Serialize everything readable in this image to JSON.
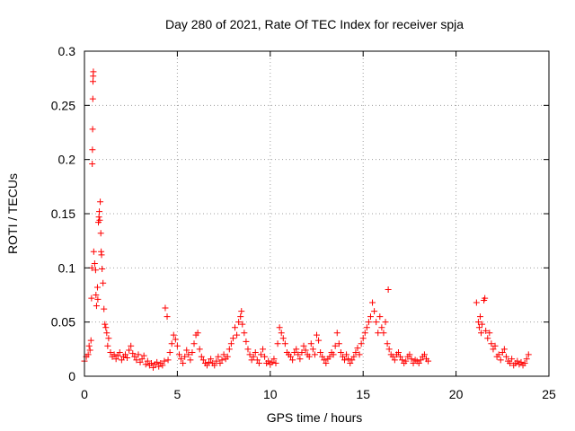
{
  "chart_data": {
    "type": "scatter",
    "title": "Day 280 of 2021, Rate Of TEC Index for receiver spja",
    "xlabel": "GPS time / hours",
    "ylabel": "ROTI / TECUs",
    "xlim": [
      0,
      25
    ],
    "ylim": [
      0,
      0.3
    ],
    "x_ticks": [
      0,
      5,
      10,
      15,
      20,
      25
    ],
    "y_ticks": [
      0,
      0.05,
      0.1,
      0.15,
      0.2,
      0.25,
      0.3
    ],
    "x_tick_labels": [
      "0",
      "5",
      "10",
      "15",
      "20",
      "25"
    ],
    "y_tick_labels": [
      "0",
      "0.05",
      "0.1",
      "0.15",
      "0.2",
      "0.25",
      "0.3"
    ],
    "grid": true,
    "marker": "plus",
    "color": "#ff0000",
    "points": [
      [
        0.0,
        0.014
      ],
      [
        0.1,
        0.018
      ],
      [
        0.2,
        0.02
      ],
      [
        0.25,
        0.028
      ],
      [
        0.3,
        0.024
      ],
      [
        0.35,
        0.033
      ],
      [
        0.38,
        0.072
      ],
      [
        0.4,
        0.1
      ],
      [
        0.42,
        0.196
      ],
      [
        0.43,
        0.209
      ],
      [
        0.44,
        0.228
      ],
      [
        0.45,
        0.256
      ],
      [
        0.46,
        0.272
      ],
      [
        0.47,
        0.277
      ],
      [
        0.48,
        0.281
      ],
      [
        0.5,
        0.115
      ],
      [
        0.55,
        0.104
      ],
      [
        0.6,
        0.098
      ],
      [
        0.62,
        0.075
      ],
      [
        0.65,
        0.065
      ],
      [
        0.7,
        0.082
      ],
      [
        0.72,
        0.071
      ],
      [
        0.75,
        0.142
      ],
      [
        0.78,
        0.147
      ],
      [
        0.8,
        0.152
      ],
      [
        0.82,
        0.144
      ],
      [
        0.85,
        0.161
      ],
      [
        0.88,
        0.132
      ],
      [
        0.9,
        0.115
      ],
      [
        0.92,
        0.112
      ],
      [
        0.95,
        0.099
      ],
      [
        1.0,
        0.086
      ],
      [
        1.05,
        0.062
      ],
      [
        1.1,
        0.048
      ],
      [
        1.15,
        0.045
      ],
      [
        1.2,
        0.04
      ],
      [
        1.25,
        0.028
      ],
      [
        1.3,
        0.035
      ],
      [
        1.4,
        0.022
      ],
      [
        1.5,
        0.018
      ],
      [
        1.6,
        0.02
      ],
      [
        1.7,
        0.016
      ],
      [
        1.8,
        0.019
      ],
      [
        1.9,
        0.022
      ],
      [
        2.0,
        0.015
      ],
      [
        2.1,
        0.018
      ],
      [
        2.2,
        0.02
      ],
      [
        2.3,
        0.017
      ],
      [
        2.4,
        0.024
      ],
      [
        2.5,
        0.028
      ],
      [
        2.6,
        0.021
      ],
      [
        2.7,
        0.018
      ],
      [
        2.8,
        0.015
      ],
      [
        2.9,
        0.02
      ],
      [
        3.0,
        0.013
      ],
      [
        3.1,
        0.016
      ],
      [
        3.2,
        0.019
      ],
      [
        3.3,
        0.011
      ],
      [
        3.4,
        0.014
      ],
      [
        3.5,
        0.01
      ],
      [
        3.6,
        0.012
      ],
      [
        3.7,
        0.008
      ],
      [
        3.8,
        0.011
      ],
      [
        3.9,
        0.013
      ],
      [
        4.0,
        0.009
      ],
      [
        4.1,
        0.012
      ],
      [
        4.2,
        0.01
      ],
      [
        4.3,
        0.014
      ],
      [
        4.35,
        0.063
      ],
      [
        4.45,
        0.055
      ],
      [
        4.5,
        0.015
      ],
      [
        4.6,
        0.022
      ],
      [
        4.7,
        0.03
      ],
      [
        4.8,
        0.038
      ],
      [
        4.9,
        0.034
      ],
      [
        5.0,
        0.028
      ],
      [
        5.1,
        0.02
      ],
      [
        5.2,
        0.016
      ],
      [
        5.3,
        0.012
      ],
      [
        5.4,
        0.018
      ],
      [
        5.5,
        0.024
      ],
      [
        5.6,
        0.02
      ],
      [
        5.7,
        0.015
      ],
      [
        5.8,
        0.022
      ],
      [
        5.9,
        0.03
      ],
      [
        6.0,
        0.038
      ],
      [
        6.1,
        0.04
      ],
      [
        6.2,
        0.025
      ],
      [
        6.3,
        0.018
      ],
      [
        6.4,
        0.015
      ],
      [
        6.5,
        0.012
      ],
      [
        6.6,
        0.01
      ],
      [
        6.7,
        0.013
      ],
      [
        6.8,
        0.016
      ],
      [
        6.9,
        0.012
      ],
      [
        7.0,
        0.01
      ],
      [
        7.1,
        0.014
      ],
      [
        7.2,
        0.018
      ],
      [
        7.3,
        0.012
      ],
      [
        7.4,
        0.015
      ],
      [
        7.5,
        0.02
      ],
      [
        7.6,
        0.016
      ],
      [
        7.7,
        0.018
      ],
      [
        7.8,
        0.025
      ],
      [
        7.9,
        0.03
      ],
      [
        8.0,
        0.035
      ],
      [
        8.1,
        0.045
      ],
      [
        8.2,
        0.038
      ],
      [
        8.3,
        0.05
      ],
      [
        8.4,
        0.055
      ],
      [
        8.45,
        0.06
      ],
      [
        8.5,
        0.048
      ],
      [
        8.6,
        0.04
      ],
      [
        8.7,
        0.032
      ],
      [
        8.8,
        0.025
      ],
      [
        8.9,
        0.02
      ],
      [
        9.0,
        0.015
      ],
      [
        9.1,
        0.018
      ],
      [
        9.2,
        0.022
      ],
      [
        9.3,
        0.015
      ],
      [
        9.4,
        0.012
      ],
      [
        9.5,
        0.02
      ],
      [
        9.6,
        0.025
      ],
      [
        9.7,
        0.018
      ],
      [
        9.8,
        0.012
      ],
      [
        9.9,
        0.014
      ],
      [
        10.0,
        0.011
      ],
      [
        10.1,
        0.013
      ],
      [
        10.2,
        0.016
      ],
      [
        10.3,
        0.012
      ],
      [
        10.4,
        0.03
      ],
      [
        10.5,
        0.045
      ],
      [
        10.6,
        0.04
      ],
      [
        10.7,
        0.035
      ],
      [
        10.8,
        0.03
      ],
      [
        10.9,
        0.022
      ],
      [
        11.0,
        0.02
      ],
      [
        11.1,
        0.018
      ],
      [
        11.2,
        0.015
      ],
      [
        11.3,
        0.022
      ],
      [
        11.4,
        0.025
      ],
      [
        11.5,
        0.02
      ],
      [
        11.6,
        0.016
      ],
      [
        11.7,
        0.022
      ],
      [
        11.8,
        0.028
      ],
      [
        11.9,
        0.024
      ],
      [
        12.0,
        0.02
      ],
      [
        12.1,
        0.018
      ],
      [
        12.2,
        0.03
      ],
      [
        12.3,
        0.025
      ],
      [
        12.4,
        0.02
      ],
      [
        12.5,
        0.038
      ],
      [
        12.6,
        0.033
      ],
      [
        12.7,
        0.022
      ],
      [
        12.8,
        0.018
      ],
      [
        12.9,
        0.015
      ],
      [
        13.0,
        0.012
      ],
      [
        13.1,
        0.016
      ],
      [
        13.2,
        0.018
      ],
      [
        13.3,
        0.022
      ],
      [
        13.4,
        0.02
      ],
      [
        13.5,
        0.028
      ],
      [
        13.6,
        0.04
      ],
      [
        13.7,
        0.03
      ],
      [
        13.8,
        0.022
      ],
      [
        13.9,
        0.018
      ],
      [
        14.0,
        0.015
      ],
      [
        14.1,
        0.02
      ],
      [
        14.2,
        0.016
      ],
      [
        14.3,
        0.012
      ],
      [
        14.4,
        0.015
      ],
      [
        14.5,
        0.018
      ],
      [
        14.6,
        0.022
      ],
      [
        14.7,
        0.026
      ],
      [
        14.8,
        0.02
      ],
      [
        14.9,
        0.03
      ],
      [
        15.0,
        0.035
      ],
      [
        15.1,
        0.04
      ],
      [
        15.2,
        0.045
      ],
      [
        15.3,
        0.05
      ],
      [
        15.4,
        0.055
      ],
      [
        15.5,
        0.068
      ],
      [
        15.6,
        0.06
      ],
      [
        15.7,
        0.05
      ],
      [
        15.8,
        0.04
      ],
      [
        15.9,
        0.055
      ],
      [
        16.0,
        0.045
      ],
      [
        16.1,
        0.04
      ],
      [
        16.2,
        0.05
      ],
      [
        16.3,
        0.03
      ],
      [
        16.35,
        0.08
      ],
      [
        16.4,
        0.025
      ],
      [
        16.5,
        0.02
      ],
      [
        16.6,
        0.018
      ],
      [
        16.7,
        0.015
      ],
      [
        16.8,
        0.02
      ],
      [
        16.9,
        0.022
      ],
      [
        17.0,
        0.018
      ],
      [
        17.1,
        0.015
      ],
      [
        17.2,
        0.012
      ],
      [
        17.3,
        0.014
      ],
      [
        17.4,
        0.018
      ],
      [
        17.5,
        0.02
      ],
      [
        17.6,
        0.016
      ],
      [
        17.7,
        0.012
      ],
      [
        17.8,
        0.015
      ],
      [
        17.9,
        0.014
      ],
      [
        18.0,
        0.012
      ],
      [
        18.1,
        0.015
      ],
      [
        18.2,
        0.018
      ],
      [
        18.3,
        0.02
      ],
      [
        18.4,
        0.016
      ],
      [
        18.5,
        0.014
      ],
      [
        21.1,
        0.068
      ],
      [
        21.2,
        0.05
      ],
      [
        21.25,
        0.045
      ],
      [
        21.3,
        0.055
      ],
      [
        21.35,
        0.04
      ],
      [
        21.4,
        0.048
      ],
      [
        21.5,
        0.07
      ],
      [
        21.55,
        0.072
      ],
      [
        21.6,
        0.042
      ],
      [
        21.7,
        0.035
      ],
      [
        21.8,
        0.04
      ],
      [
        21.9,
        0.03
      ],
      [
        22.0,
        0.025
      ],
      [
        22.1,
        0.028
      ],
      [
        22.2,
        0.018
      ],
      [
        22.3,
        0.02
      ],
      [
        22.4,
        0.015
      ],
      [
        22.5,
        0.022
      ],
      [
        22.6,
        0.025
      ],
      [
        22.7,
        0.018
      ],
      [
        22.8,
        0.014
      ],
      [
        22.9,
        0.012
      ],
      [
        23.0,
        0.016
      ],
      [
        23.1,
        0.01
      ],
      [
        23.2,
        0.012
      ],
      [
        23.3,
        0.014
      ],
      [
        23.4,
        0.011
      ],
      [
        23.5,
        0.013
      ],
      [
        23.6,
        0.01
      ],
      [
        23.7,
        0.012
      ],
      [
        23.8,
        0.016
      ],
      [
        23.9,
        0.02
      ]
    ]
  }
}
